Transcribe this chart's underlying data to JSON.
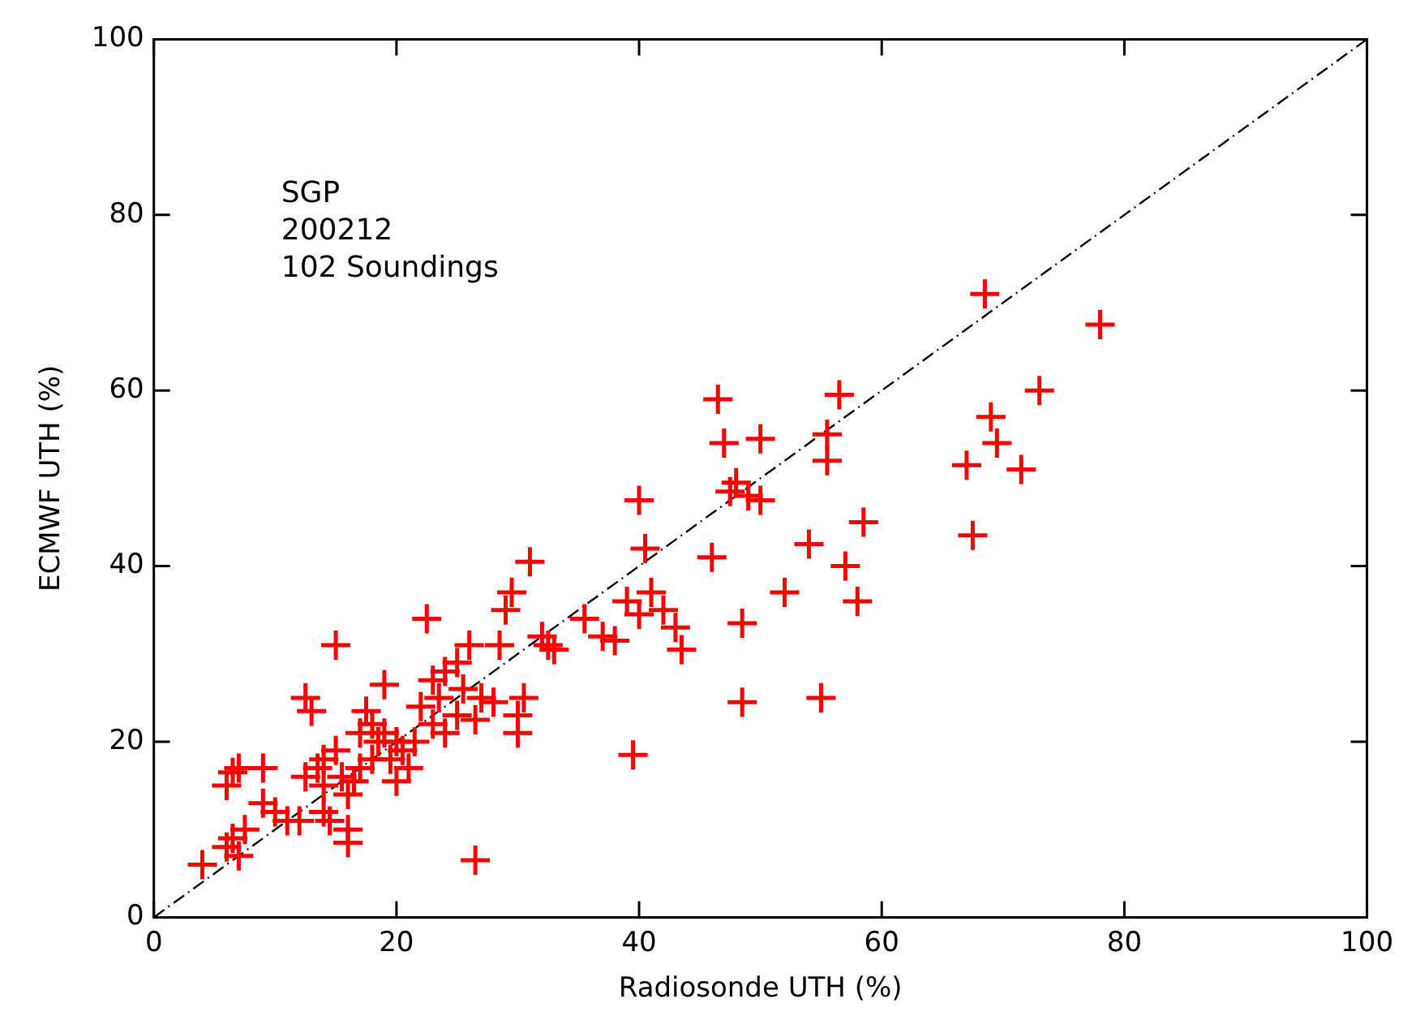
{
  "chart_data": {
    "type": "scatter",
    "xlabel": "Radiosonde UTH (%)",
    "ylabel": "ECMWF UTH (%)",
    "annotations": [
      "SGP",
      "200212",
      "102 Soundings"
    ],
    "xlim": [
      0,
      100
    ],
    "ylim": [
      0,
      100
    ],
    "xticks": [
      0,
      20,
      40,
      60,
      80,
      100
    ],
    "yticks": [
      0,
      20,
      40,
      60,
      80,
      100
    ],
    "grid": false,
    "legend": false,
    "marker": "cross",
    "series": [
      {
        "color": "#ff0000",
        "x": [
          4,
          6,
          6.5,
          7,
          7.5,
          6,
          6.5,
          7,
          9,
          9,
          10,
          11,
          12,
          12.5,
          12.5,
          13,
          13.5,
          14,
          14,
          14,
          14.5,
          15,
          15,
          15.5,
          16,
          16,
          16,
          16.5,
          17,
          17,
          17.5,
          18,
          18,
          18.5,
          19,
          19,
          19.5,
          20,
          20,
          20.5,
          21,
          21.5,
          22,
          22.5,
          23,
          23,
          23.5,
          24,
          24,
          25,
          25,
          25.5,
          26,
          26.5,
          26.5,
          27,
          28,
          28.5,
          29,
          29.5,
          30,
          30,
          30.5,
          31,
          32,
          32.5,
          33,
          35.5,
          37,
          38,
          39,
          39.5,
          40,
          40,
          40.5,
          41,
          42,
          43,
          43.5,
          46,
          46.5,
          47,
          47.5,
          48,
          48.5,
          48.5,
          49,
          50,
          50,
          52,
          54,
          55,
          55.5,
          55.5,
          56.5,
          57,
          58,
          58.5,
          67,
          67.5,
          68.5,
          69,
          69.5,
          71.5,
          73,
          78
        ],
        "values": [
          6,
          8,
          9,
          7,
          10,
          15,
          16.5,
          17,
          17,
          13,
          12,
          11,
          11,
          16,
          25,
          23.5,
          17,
          18,
          15,
          12,
          11,
          19,
          31,
          16,
          14,
          10,
          8.5,
          15.5,
          17,
          21,
          23.5,
          18,
          22,
          20,
          26.5,
          21,
          18,
          20,
          15.5,
          19,
          17,
          20,
          24,
          34,
          27,
          22,
          25,
          21,
          28,
          29,
          23,
          26,
          31,
          6.5,
          22.5,
          25,
          24.5,
          31,
          35,
          37,
          23,
          21,
          25,
          40.5,
          32,
          31,
          30.5,
          34,
          32,
          31.5,
          36,
          18.5,
          34.5,
          47.5,
          42,
          37,
          35,
          33,
          30.5,
          41,
          59,
          54,
          48.5,
          49.5,
          24.5,
          33.5,
          48,
          47.5,
          54.5,
          37,
          42.5,
          25,
          55,
          52,
          59.5,
          40,
          36,
          45,
          51.5,
          43.5,
          71,
          57,
          54,
          51,
          60,
          67.5
        ]
      },
      {
        "type": "line",
        "color": "#000000",
        "marker": "none",
        "line_style": "dashed",
        "x": [
          0,
          100
        ],
        "values": [
          0,
          100
        ]
      }
    ]
  }
}
